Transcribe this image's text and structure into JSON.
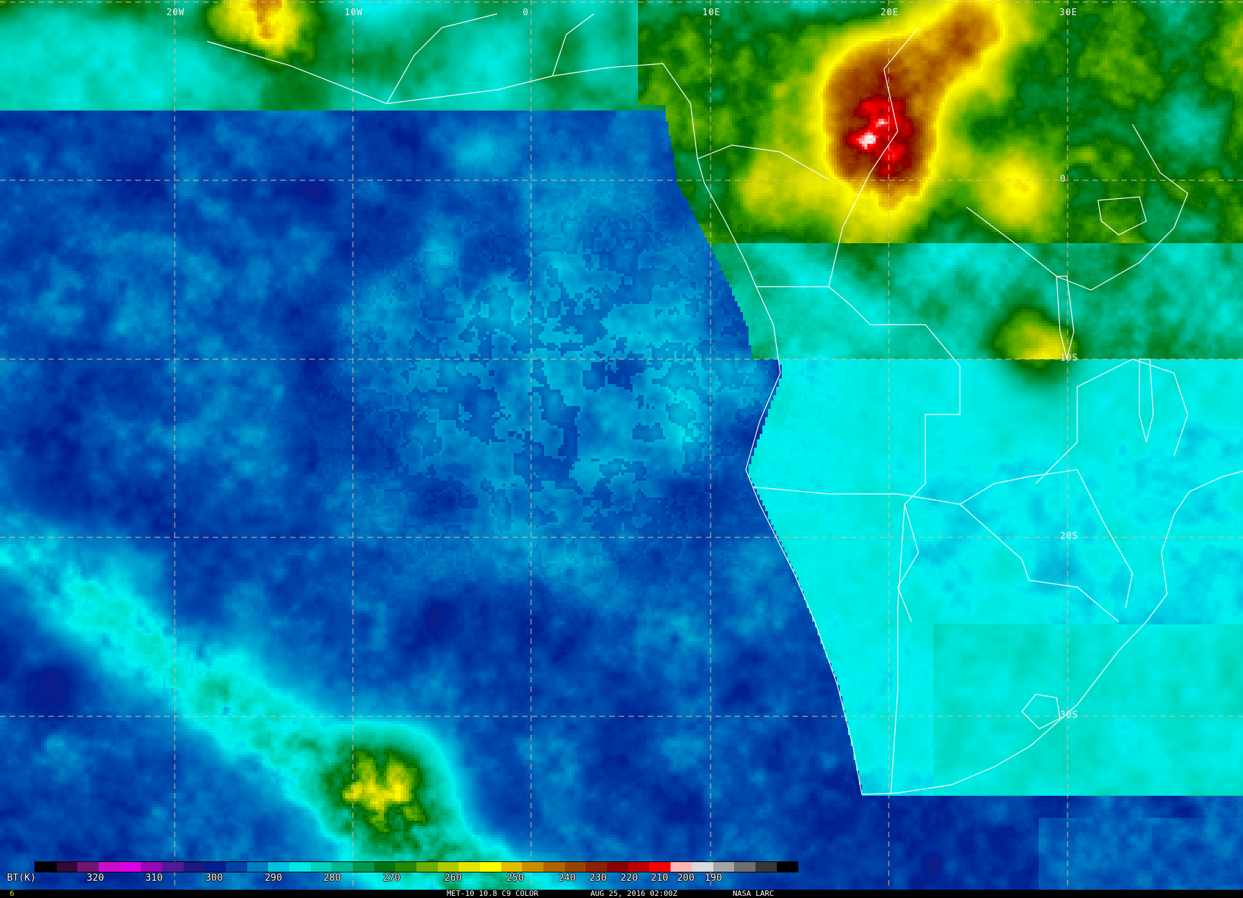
{
  "grid": {
    "lon_labels": [
      "20W",
      "10W",
      "0",
      "10E",
      "20E",
      "30E"
    ],
    "lat_labels": [
      "0",
      "10S",
      "20S",
      "30S"
    ],
    "line_color": "#e8b898"
  },
  "colorbar": {
    "unit_label": "BT(K)",
    "tick_labels": [
      "320",
      "310",
      "300",
      "290",
      "280",
      "270",
      "260",
      "250",
      "240",
      "230",
      "220",
      "210",
      "200",
      "190"
    ],
    "stops": [
      [
        330,
        "#000000"
      ],
      [
        325,
        "#3a0a3a"
      ],
      [
        320,
        "#8a1a8a"
      ],
      [
        315,
        "#ff00ff"
      ],
      [
        310,
        "#b000c0"
      ],
      [
        305,
        "#5a1a9a"
      ],
      [
        300,
        "#1a1a80"
      ],
      [
        295,
        "#002090"
      ],
      [
        290,
        "#0050b0"
      ],
      [
        285,
        "#00a0d0"
      ],
      [
        280,
        "#00f0f0"
      ],
      [
        275,
        "#00d8c0"
      ],
      [
        270,
        "#00b890"
      ],
      [
        265,
        "#009040"
      ],
      [
        260,
        "#006800"
      ],
      [
        255,
        "#40a000"
      ],
      [
        250,
        "#a0c000"
      ],
      [
        245,
        "#e0e000"
      ],
      [
        240,
        "#ffff00"
      ],
      [
        235,
        "#e0b000"
      ],
      [
        230,
        "#c08000"
      ],
      [
        225,
        "#a05000"
      ],
      [
        220,
        "#903000"
      ],
      [
        215,
        "#800000"
      ],
      [
        210,
        "#c00000"
      ],
      [
        205,
        "#ff0000"
      ],
      [
        200,
        "#ffffff"
      ],
      [
        195,
        "#c0c0c0"
      ],
      [
        190,
        "#808080"
      ],
      [
        185,
        "#404040"
      ],
      [
        180,
        "#000000"
      ]
    ]
  },
  "footer": {
    "frame_number": "6",
    "product": "MET-10 10.8 C9 COLOR",
    "datetime": "AUG 25, 2016 02:00Z",
    "source": "NASA LARC"
  }
}
